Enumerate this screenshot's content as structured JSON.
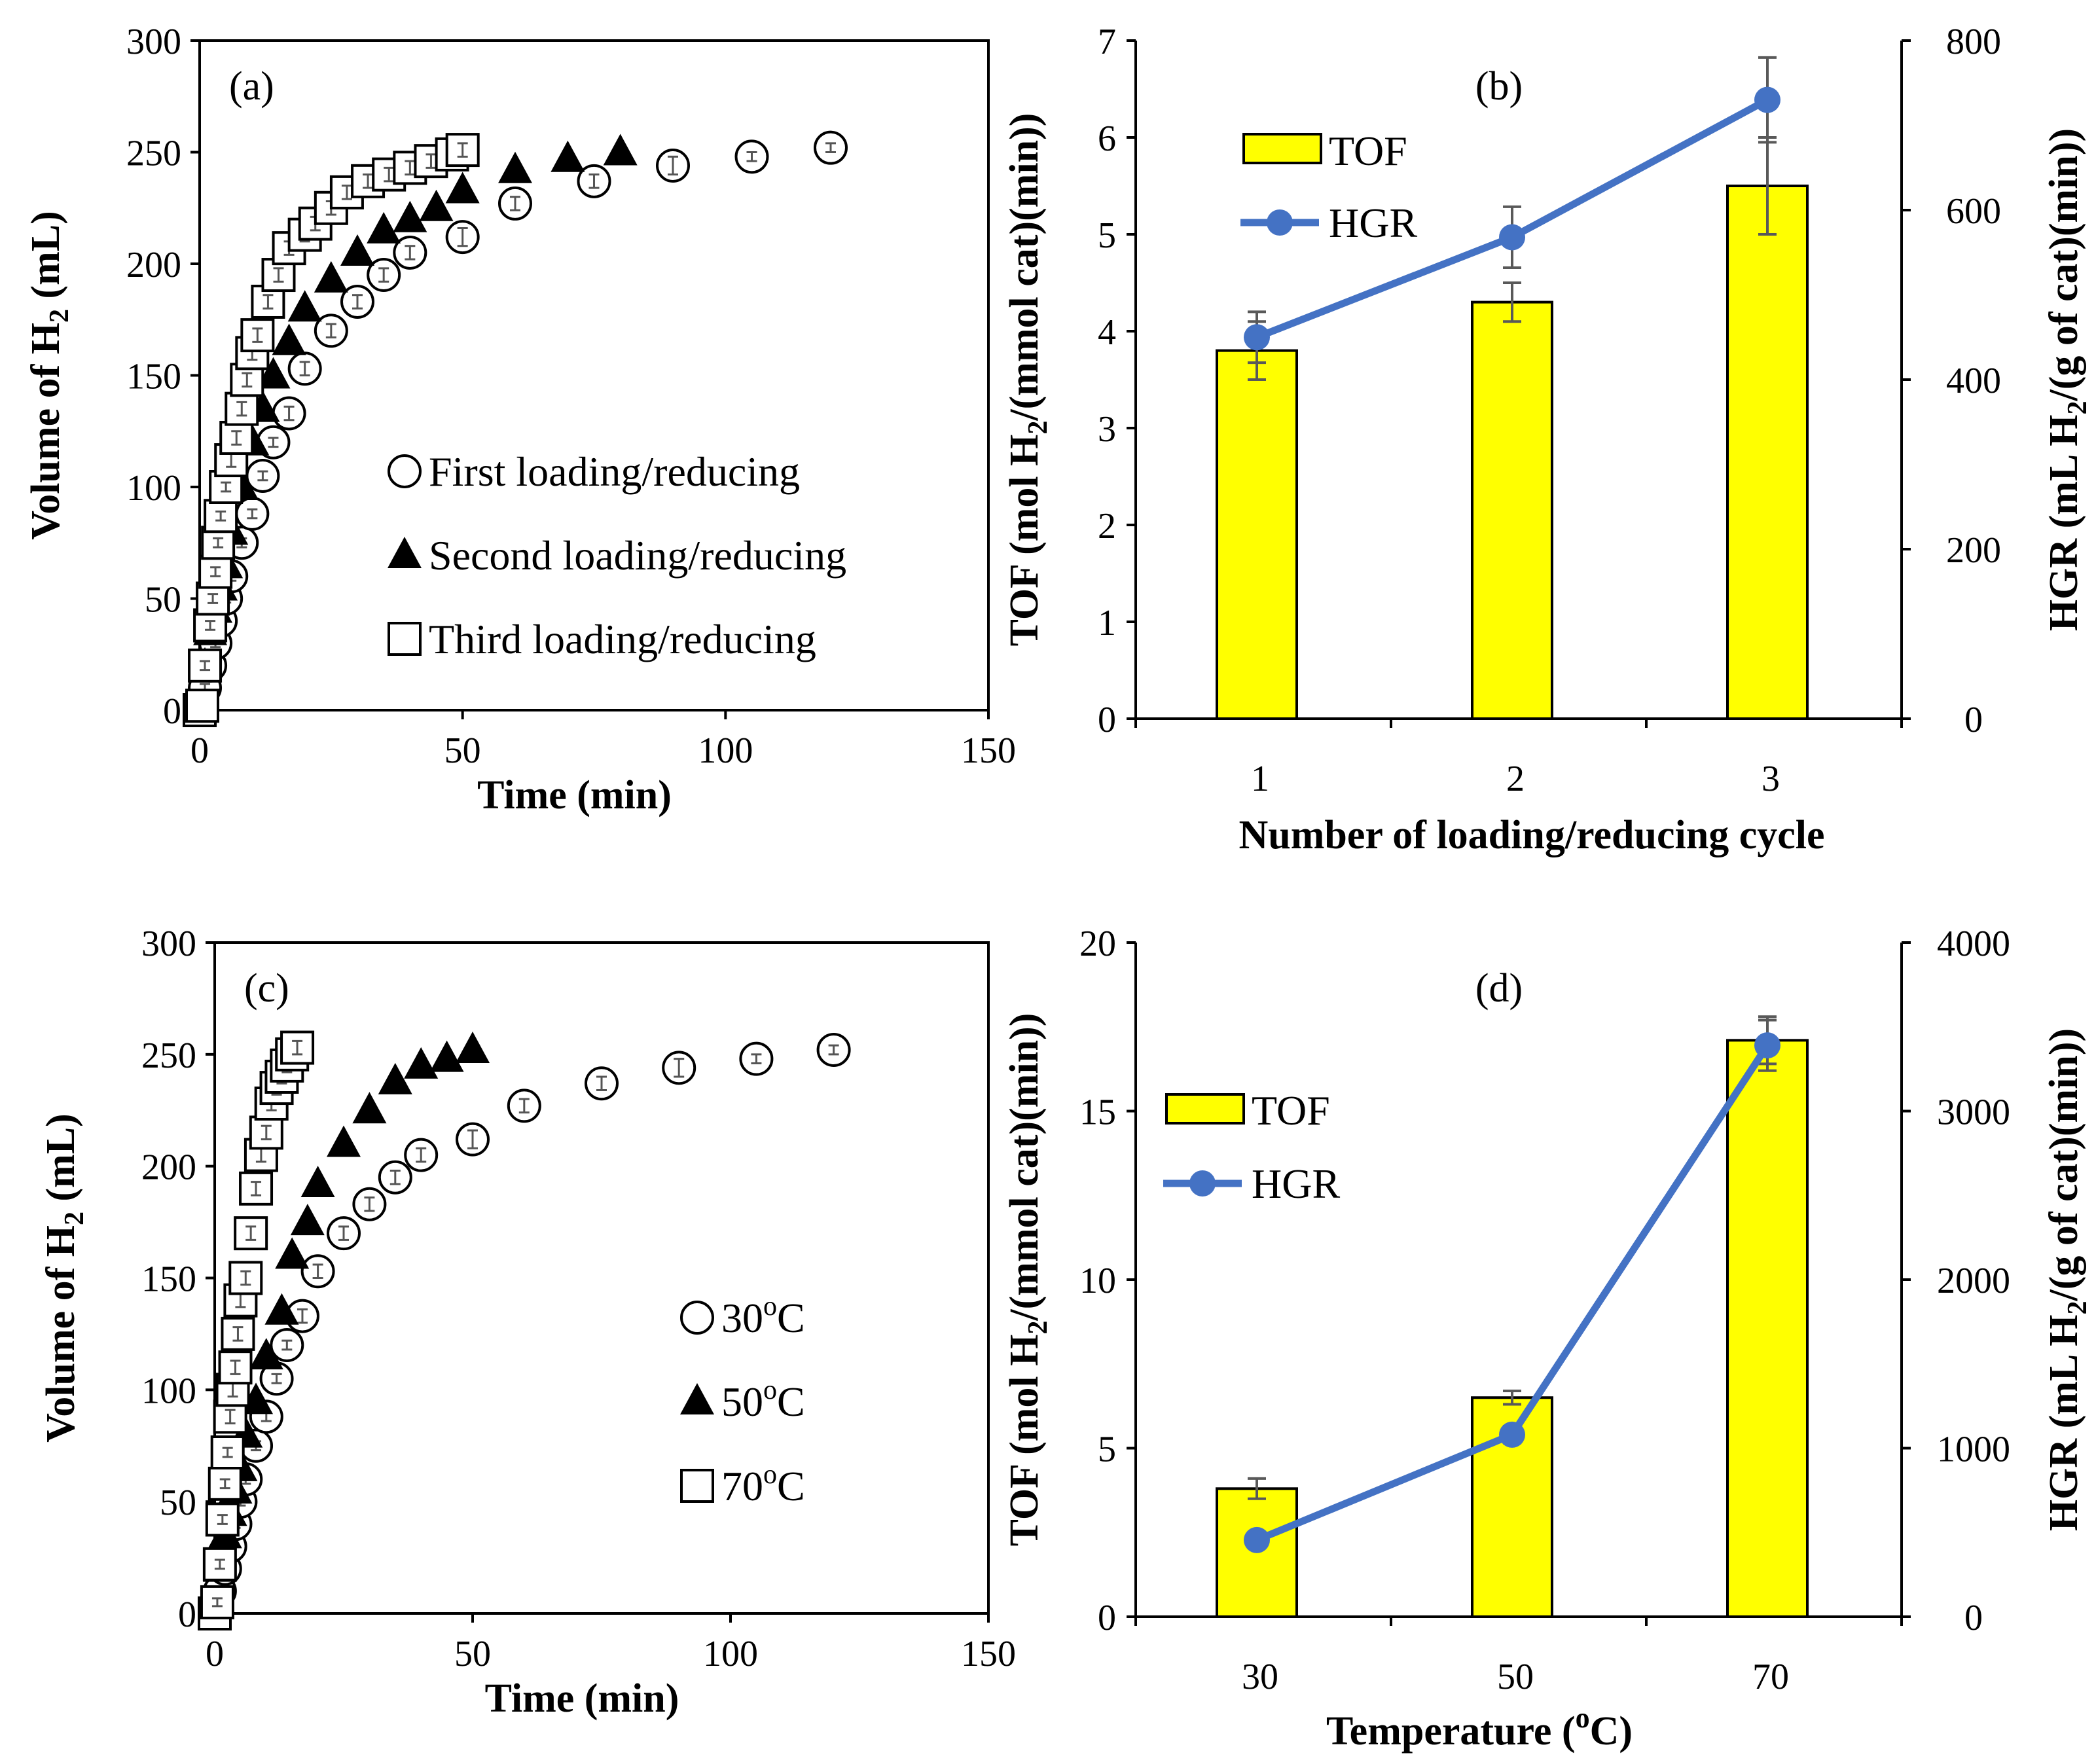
{
  "figure": {
    "panel_labels": [
      "(a)",
      "(b)",
      "(c)",
      "(d)"
    ]
  },
  "chart_data": [
    {
      "id": "a",
      "type": "scatter",
      "panel_label": "(a)",
      "xlabel": "Time (min)",
      "ylabel_parts": [
        "Volume of H",
        "2",
        " (mL)"
      ],
      "xlim": [
        0,
        150
      ],
      "ylim": [
        0,
        300
      ],
      "xticks": [
        "0",
        "50",
        "100",
        "150"
      ],
      "yticks": [
        "0",
        "50",
        "100",
        "150",
        "200",
        "250",
        "300"
      ],
      "series": [
        {
          "name": "First loading/reducing",
          "marker": "circle",
          "x": [
            0,
            1,
            2,
            3,
            4,
            5,
            6,
            8,
            10,
            12,
            14,
            17,
            20,
            25,
            30,
            35,
            40,
            50,
            60,
            75,
            90,
            105,
            120
          ],
          "y": [
            0,
            10,
            20,
            30,
            40,
            50,
            60,
            75,
            88,
            105,
            120,
            133,
            153,
            170,
            183,
            195,
            205,
            212,
            227,
            237,
            244,
            248,
            252
          ],
          "err": [
            1,
            1,
            1,
            1,
            1,
            1,
            2,
            2,
            2,
            2,
            2,
            3,
            3,
            3,
            3,
            3,
            3,
            4,
            3,
            3,
            4,
            2,
            2
          ]
        },
        {
          "name": "Second loading/reducing",
          "marker": "triangle",
          "x": [
            0,
            1,
            2,
            3,
            4,
            5,
            6,
            8,
            10,
            12,
            14,
            17,
            20,
            25,
            30,
            35,
            40,
            45,
            50,
            60,
            70,
            80
          ],
          "y": [
            0,
            20,
            35,
            45,
            55,
            65,
            80,
            100,
            120,
            135,
            150,
            165,
            180,
            193,
            205,
            215,
            220,
            225,
            233,
            242,
            247,
            250
          ],
          "err": [
            0,
            0,
            0,
            0,
            0,
            0,
            0,
            0,
            0,
            0,
            0,
            0,
            0,
            0,
            0,
            0,
            0,
            0,
            0,
            0,
            0,
            0
          ]
        },
        {
          "name": "Third loading/reducing",
          "marker": "square",
          "x": [
            0,
            0.5,
            1,
            2,
            2.5,
            3,
            3.5,
            4,
            5,
            6,
            7,
            8,
            9,
            10,
            11,
            13,
            15,
            17,
            20,
            22,
            25,
            28,
            32,
            36,
            40,
            44,
            48,
            50
          ],
          "y": [
            0,
            2,
            20,
            38,
            50,
            62,
            75,
            87,
            100,
            112,
            122,
            135,
            148,
            160,
            168,
            183,
            195,
            207,
            213,
            218,
            225,
            232,
            237,
            240,
            243,
            246,
            249,
            251
          ],
          "err": [
            0,
            0,
            2,
            2,
            2,
            2,
            2,
            2,
            2,
            3,
            3,
            3,
            3,
            3,
            3,
            3,
            3,
            3,
            3,
            3,
            3,
            3,
            3,
            3,
            3,
            3,
            3,
            3
          ]
        }
      ]
    },
    {
      "id": "b",
      "type": "bar",
      "panel_label": "(b)",
      "xlabel": "Number of loading/reducing cycle",
      "ylabel_parts": [
        "TOF (mol H",
        "2",
        "/(mmol cat)(min))"
      ],
      "y2label_parts": [
        "HGR (mL H",
        "2",
        "/(g of cat)(min))"
      ],
      "categories": [
        "1",
        "2",
        "3"
      ],
      "ylim": [
        0,
        7
      ],
      "y2lim": [
        0,
        800
      ],
      "yticks": [
        "0",
        "1",
        "2",
        "3",
        "4",
        "5",
        "6",
        "7"
      ],
      "y2ticks": [
        "0",
        "200",
        "400",
        "600",
        "800"
      ],
      "bars": {
        "name": "TOF",
        "values": [
          3.8,
          4.3,
          5.5
        ],
        "err": [
          0.3,
          0.2,
          0.5
        ],
        "color": "#ffff00"
      },
      "line": {
        "name": "HGR",
        "values": [
          450,
          568,
          730
        ],
        "err": [
          30,
          36,
          50
        ],
        "color": "#4472c4"
      }
    },
    {
      "id": "c",
      "type": "scatter",
      "panel_label": "(c)",
      "xlabel": "Time (min)",
      "ylabel_parts": [
        "Volume of H",
        "2",
        " (mL)"
      ],
      "xlim": [
        0,
        150
      ],
      "ylim": [
        0,
        300
      ],
      "xticks": [
        "0",
        "50",
        "100",
        "150"
      ],
      "yticks": [
        "0",
        "50",
        "100",
        "150",
        "200",
        "250",
        "300"
      ],
      "series": [
        {
          "name": "30",
          "marker": "circle",
          "x": [
            0,
            1,
            2,
            3,
            4,
            5,
            6,
            8,
            10,
            12,
            14,
            17,
            20,
            25,
            30,
            35,
            40,
            50,
            60,
            75,
            90,
            105,
            120
          ],
          "y": [
            0,
            10,
            20,
            30,
            40,
            50,
            60,
            75,
            88,
            105,
            120,
            133,
            153,
            170,
            183,
            195,
            205,
            212,
            227,
            237,
            244,
            248,
            252
          ],
          "err": [
            1,
            1,
            1,
            1,
            1,
            1,
            2,
            2,
            2,
            2,
            2,
            3,
            3,
            3,
            3,
            3,
            3,
            4,
            3,
            3,
            4,
            2,
            2
          ]
        },
        {
          "name": "50",
          "marker": "triangle",
          "x": [
            0,
            1,
            2,
            3,
            4,
            5,
            6,
            8,
            10,
            13,
            15,
            18,
            20,
            25,
            30,
            35,
            40,
            45,
            50
          ],
          "y": [
            0,
            20,
            35,
            45,
            55,
            65,
            80,
            95,
            115,
            135,
            160,
            175,
            192,
            210,
            225,
            238,
            245,
            248,
            252
          ],
          "err": [
            0,
            0,
            0,
            0,
            0,
            0,
            0,
            0,
            0,
            0,
            0,
            0,
            0,
            0,
            0,
            0,
            0,
            0,
            0
          ]
        },
        {
          "name": "70",
          "marker": "square",
          "x": [
            0,
            0.5,
            1,
            1.5,
            2,
            2.5,
            3,
            3.5,
            4,
            4.5,
            5,
            6,
            7,
            8,
            9,
            10,
            11,
            12,
            13,
            14,
            15,
            16
          ],
          "y": [
            0,
            5,
            22,
            42,
            58,
            72,
            88,
            100,
            110,
            125,
            140,
            150,
            170,
            190,
            205,
            215,
            228,
            235,
            240,
            245,
            250,
            253
          ],
          "err": [
            0,
            1,
            2,
            2,
            2,
            2,
            3,
            3,
            3,
            3,
            3,
            3,
            3,
            3,
            3,
            3,
            3,
            3,
            3,
            3,
            3,
            3
          ]
        }
      ]
    },
    {
      "id": "d",
      "type": "bar",
      "panel_label": "(d)",
      "xlabel_parts": [
        "Temperature (",
        "o",
        "C)"
      ],
      "ylabel_parts": [
        "TOF (mol H",
        "2",
        "/(mmol cat)(min))"
      ],
      "y2label_parts": [
        "HGR (mL H",
        "2",
        "/(g of cat)(min))"
      ],
      "categories": [
        "30",
        "50",
        "70"
      ],
      "ylim": [
        0,
        20
      ],
      "y2lim": [
        0,
        4000
      ],
      "yticks": [
        "0",
        "5",
        "10",
        "15",
        "20"
      ],
      "y2ticks": [
        "0",
        "1000",
        "2000",
        "3000",
        "4000"
      ],
      "bars": {
        "name": "TOF",
        "values": [
          3.8,
          6.5,
          17.1
        ],
        "err": [
          0.3,
          0.2,
          0.7
        ],
        "color": "#ffff00"
      },
      "line": {
        "name": "HGR",
        "values": [
          455,
          1080,
          3390
        ],
        "err": [
          0,
          50,
          150
        ],
        "color": "#4472c4"
      }
    }
  ],
  "legend_c": {
    "degree": "o",
    "unit": "C"
  }
}
